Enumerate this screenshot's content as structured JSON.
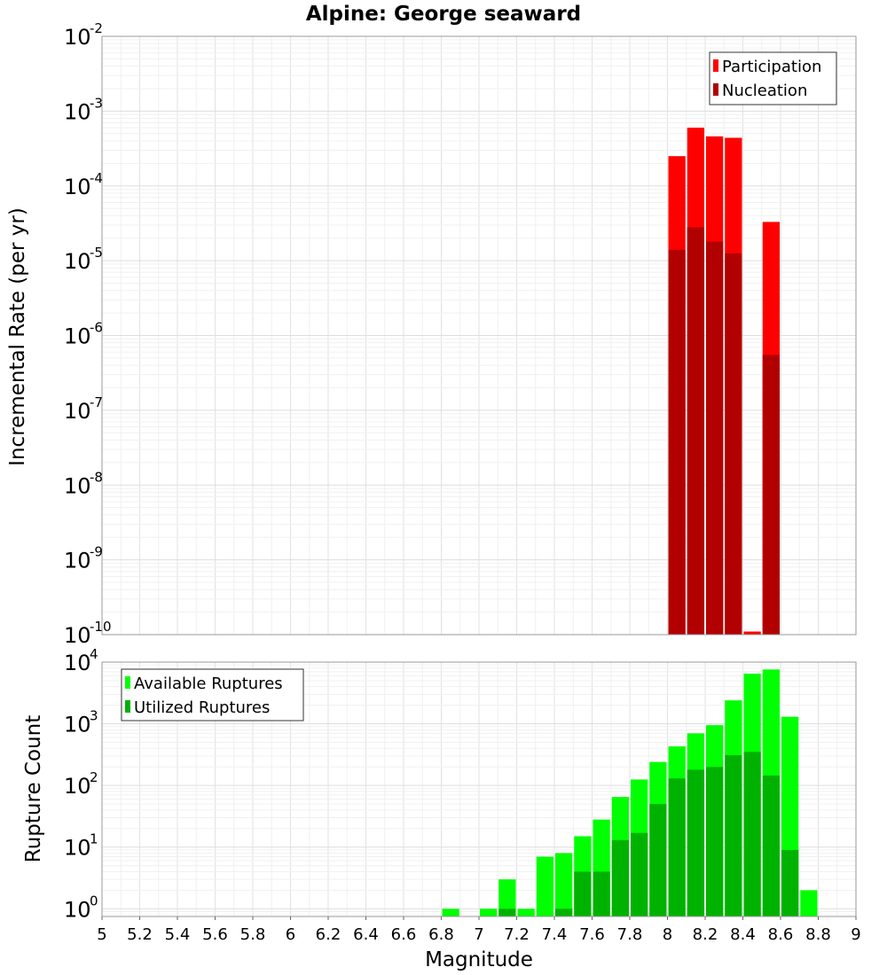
{
  "chart_data": [
    {
      "type": "bar",
      "title": "Alpine: George seaward",
      "xlabel": "",
      "ylabel": "Incremental Rate (per yr)",
      "yscale": "log",
      "ylim": [
        1e-10,
        0.01
      ],
      "xlim": [
        5,
        9
      ],
      "y_tick_labels": [
        {
          "base": "10",
          "exp": "-10"
        },
        {
          "base": "10",
          "exp": "-9"
        },
        {
          "base": "10",
          "exp": "-8"
        },
        {
          "base": "10",
          "exp": "-7"
        },
        {
          "base": "10",
          "exp": "-6"
        },
        {
          "base": "10",
          "exp": "-5"
        },
        {
          "base": "10",
          "exp": "-4"
        },
        {
          "base": "10",
          "exp": "-3"
        },
        {
          "base": "10",
          "exp": "-2"
        }
      ],
      "grid": true,
      "legend_position": "top-right",
      "series": [
        {
          "name": "Participation",
          "color": "#ff0000",
          "points": [
            {
              "x": 8.05,
              "y": 0.00025
            },
            {
              "x": 8.15,
              "y": 0.0006
            },
            {
              "x": 8.25,
              "y": 0.00046
            },
            {
              "x": 8.35,
              "y": 0.00044
            },
            {
              "x": 8.45,
              "y": 1.1e-10
            },
            {
              "x": 8.55,
              "y": 3.3e-05
            }
          ]
        },
        {
          "name": "Nucleation",
          "color": "#b20000",
          "points": [
            {
              "x": 8.05,
              "y": 1.4e-05
            },
            {
              "x": 8.15,
              "y": 2.8e-05
            },
            {
              "x": 8.25,
              "y": 1.8e-05
            },
            {
              "x": 8.35,
              "y": 1.25e-05
            },
            {
              "x": 8.55,
              "y": 5.5e-07
            }
          ]
        }
      ]
    },
    {
      "type": "bar",
      "xlabel": "Magnitude",
      "ylabel": "Rupture Count",
      "yscale": "log",
      "ylim": [
        0.75,
        10000
      ],
      "xlim": [
        5,
        9
      ],
      "x_tick_labels": [
        "5",
        "5.2",
        "5.4",
        "5.6",
        "5.8",
        "6",
        "6.2",
        "6.4",
        "6.6",
        "6.8",
        "7",
        "7.2",
        "7.4",
        "7.6",
        "7.8",
        "8",
        "8.2",
        "8.4",
        "8.6",
        "8.8",
        "9"
      ],
      "y_tick_labels": [
        {
          "base": "10",
          "exp": "0"
        },
        {
          "base": "10",
          "exp": "1"
        },
        {
          "base": "10",
          "exp": "2"
        },
        {
          "base": "10",
          "exp": "3"
        },
        {
          "base": "10",
          "exp": "4"
        }
      ],
      "grid": true,
      "legend_position": "top-left",
      "series": [
        {
          "name": "Available Ruptures",
          "color": "#00ff00",
          "points": [
            {
              "x": 6.85,
              "y": 1
            },
            {
              "x": 7.05,
              "y": 1
            },
            {
              "x": 7.15,
              "y": 3
            },
            {
              "x": 7.25,
              "y": 1
            },
            {
              "x": 7.35,
              "y": 7
            },
            {
              "x": 7.45,
              "y": 8
            },
            {
              "x": 7.55,
              "y": 15
            },
            {
              "x": 7.65,
              "y": 28
            },
            {
              "x": 7.75,
              "y": 65
            },
            {
              "x": 7.85,
              "y": 125
            },
            {
              "x": 7.95,
              "y": 240
            },
            {
              "x": 8.05,
              "y": 430
            },
            {
              "x": 8.15,
              "y": 700
            },
            {
              "x": 8.25,
              "y": 950
            },
            {
              "x": 8.35,
              "y": 2400
            },
            {
              "x": 8.45,
              "y": 6500
            },
            {
              "x": 8.55,
              "y": 7600
            },
            {
              "x": 8.65,
              "y": 1300
            },
            {
              "x": 8.75,
              "y": 2
            }
          ]
        },
        {
          "name": "Utilized Ruptures",
          "color": "#00b200",
          "points": [
            {
              "x": 7.15,
              "y": 1
            },
            {
              "x": 7.45,
              "y": 1
            },
            {
              "x": 7.55,
              "y": 4
            },
            {
              "x": 7.65,
              "y": 4
            },
            {
              "x": 7.75,
              "y": 13
            },
            {
              "x": 7.85,
              "y": 17
            },
            {
              "x": 7.95,
              "y": 50
            },
            {
              "x": 8.05,
              "y": 130
            },
            {
              "x": 8.15,
              "y": 180
            },
            {
              "x": 8.25,
              "y": 200
            },
            {
              "x": 8.35,
              "y": 310
            },
            {
              "x": 8.45,
              "y": 350
            },
            {
              "x": 8.55,
              "y": 145
            },
            {
              "x": 8.65,
              "y": 9
            }
          ]
        }
      ]
    }
  ]
}
